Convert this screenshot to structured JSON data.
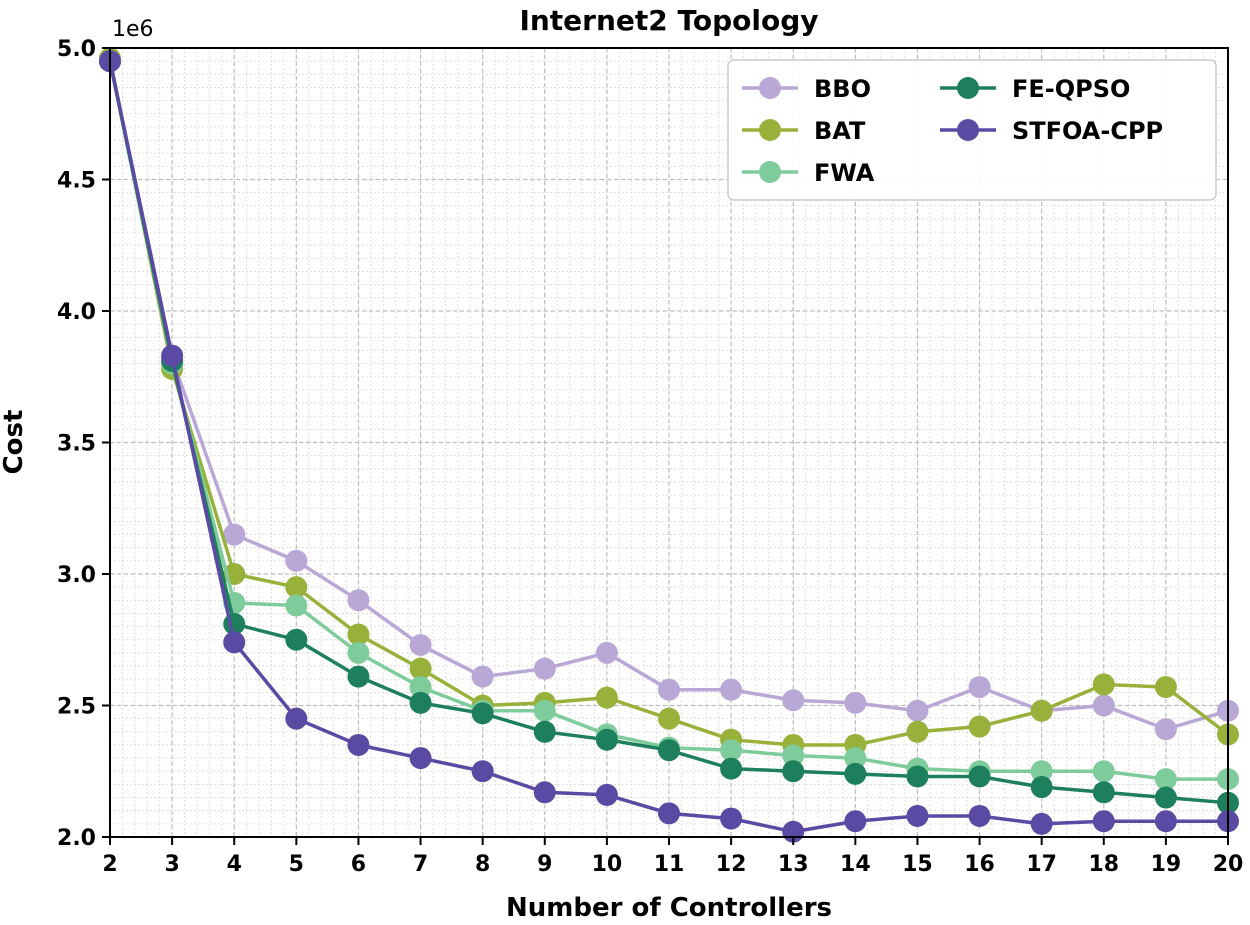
{
  "chart_data": {
    "type": "line",
    "title": "Internet2 Topology",
    "xlabel": "Number of Controllers",
    "ylabel": "Cost",
    "y_multiplier_label": "1e6",
    "x": [
      2,
      3,
      4,
      5,
      6,
      7,
      8,
      9,
      10,
      11,
      12,
      13,
      14,
      15,
      16,
      17,
      18,
      19,
      20
    ],
    "xlim": [
      2,
      20
    ],
    "ylim": [
      2.0,
      5.0
    ],
    "y_unit_scale": 1000000,
    "y_ticks": [
      "2.0",
      "2.5",
      "3.0",
      "3.5",
      "4.0",
      "4.5",
      "5.0"
    ],
    "x_ticks": [
      "2",
      "3",
      "4",
      "5",
      "6",
      "7",
      "8",
      "9",
      "10",
      "11",
      "12",
      "13",
      "14",
      "15",
      "16",
      "17",
      "18",
      "19",
      "20"
    ],
    "grid": true,
    "minor_grid": true,
    "legend_position": "top-right",
    "series": [
      {
        "name": "BBO",
        "color": "#b9a7d6",
        "values": [
          4.95,
          3.82,
          3.15,
          3.05,
          2.9,
          2.73,
          2.61,
          2.64,
          2.7,
          2.56,
          2.56,
          2.52,
          2.51,
          2.48,
          2.57,
          2.48,
          2.5,
          2.41,
          2.48
        ]
      },
      {
        "name": "BAT",
        "color": "#98b13a",
        "values": [
          4.96,
          3.78,
          3.0,
          2.95,
          2.77,
          2.64,
          2.5,
          2.51,
          2.53,
          2.45,
          2.37,
          2.35,
          2.35,
          2.4,
          2.42,
          2.48,
          2.58,
          2.57,
          2.39
        ]
      },
      {
        "name": "FWA",
        "color": "#7ecb9b",
        "values": [
          4.95,
          3.8,
          2.89,
          2.88,
          2.7,
          2.57,
          2.48,
          2.48,
          2.39,
          2.34,
          2.33,
          2.31,
          2.3,
          2.26,
          2.25,
          2.25,
          2.25,
          2.22,
          2.22
        ]
      },
      {
        "name": "FE-QPSO",
        "color": "#1e7f5c",
        "values": [
          4.95,
          3.81,
          2.81,
          2.75,
          2.61,
          2.51,
          2.47,
          2.4,
          2.37,
          2.33,
          2.26,
          2.25,
          2.24,
          2.23,
          2.23,
          2.19,
          2.17,
          2.15,
          2.13
        ]
      },
      {
        "name": "STFOA-CPP",
        "color": "#5b4aa3",
        "values": [
          4.95,
          3.83,
          2.74,
          2.45,
          2.35,
          2.3,
          2.25,
          2.17,
          2.16,
          2.09,
          2.07,
          2.02,
          2.06,
          2.08,
          2.08,
          2.05,
          2.06,
          2.06,
          2.06
        ]
      }
    ]
  }
}
